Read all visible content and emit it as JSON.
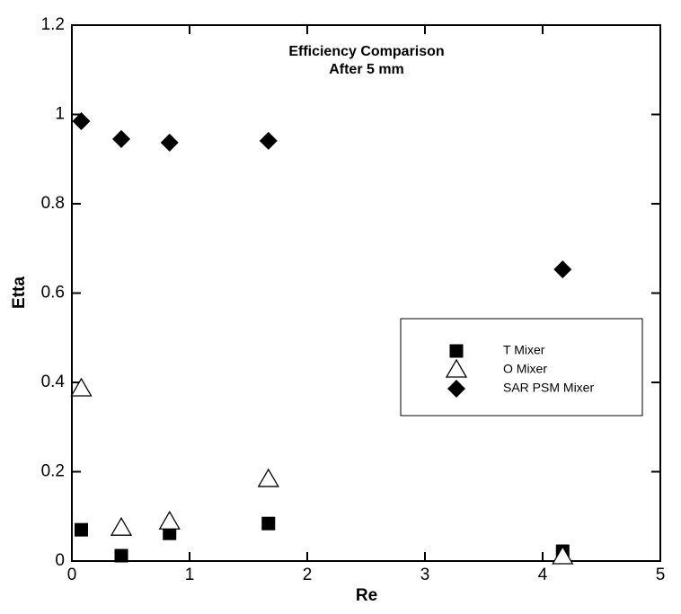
{
  "chart_data": {
    "type": "scatter",
    "title": [
      "Efficiency Comparison",
      "After 5 mm"
    ],
    "x_label": "Re",
    "y_label": "Etta",
    "x": [
      0.08,
      0.42,
      0.83,
      1.67,
      4.17
    ],
    "series": [
      {
        "name": "T Mixer",
        "marker": "square",
        "color": "#000000",
        "values": [
          0.07,
          0.012,
          0.062,
          0.084,
          0.022
        ]
      },
      {
        "name": "O Mixer",
        "marker": "triangle-open",
        "color": "#000000",
        "values": [
          0.386,
          0.074,
          0.088,
          0.183,
          0.01
        ]
      },
      {
        "name": "SAR PSM Mixer",
        "marker": "diamond",
        "color": "#000000",
        "values": [
          0.985,
          0.945,
          0.937,
          0.941,
          0.653
        ]
      }
    ],
    "xlim": [
      0,
      5
    ],
    "xticks": [
      0,
      1,
      2,
      3,
      4,
      5
    ],
    "ylim": [
      0,
      1.2
    ],
    "yticks": [
      0,
      0.2,
      0.4,
      0.6,
      0.8,
      1,
      1.2
    ]
  }
}
